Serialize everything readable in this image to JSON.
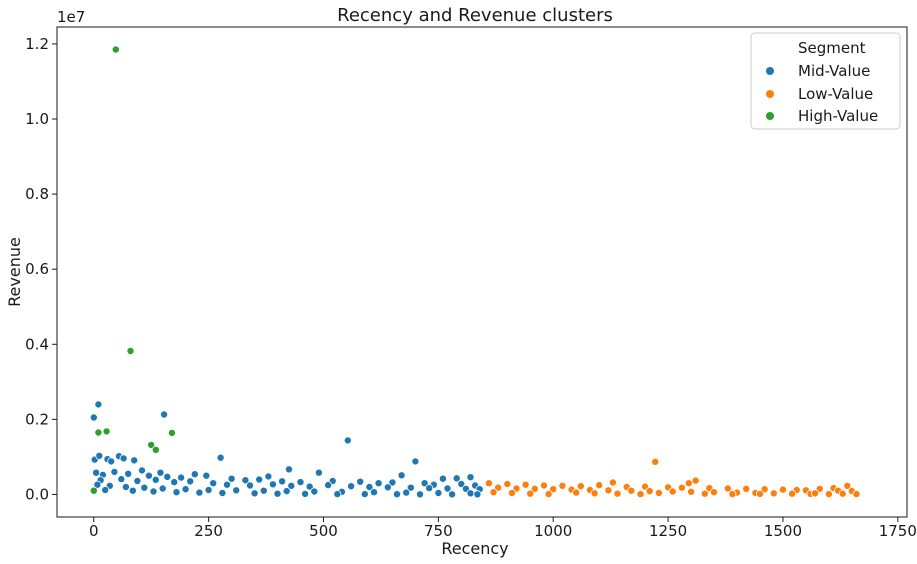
{
  "chart_data": {
    "type": "scatter",
    "title": "Recency and Revenue clusters",
    "xlabel": "Recency",
    "ylabel": "Revenue",
    "y_offset_text": "1e7",
    "xlim": [
      -80,
      1770
    ],
    "ylim": [
      -600000,
      12450000
    ],
    "x_ticks": [
      0,
      250,
      500,
      750,
      1000,
      1250,
      1500,
      1750
    ],
    "y_ticks": [
      0,
      2000000,
      4000000,
      6000000,
      8000000,
      10000000,
      12000000
    ],
    "y_tick_labels": [
      "0.0",
      "0.2",
      "0.4",
      "0.6",
      "0.8",
      "1.0",
      "1.2"
    ],
    "grid": false,
    "legend": {
      "title": "Segment",
      "placement": "top-right",
      "entries": [
        "Mid-Value",
        "Low-Value",
        "High-Value"
      ]
    },
    "series": [
      {
        "name": "Mid-Value",
        "color": "#1f77b4",
        "points": [
          [
            0,
            2050000
          ],
          [
            10,
            2400000
          ],
          [
            2,
            930000
          ],
          [
            12,
            1030000
          ],
          [
            30,
            940000
          ],
          [
            38,
            880000
          ],
          [
            55,
            1020000
          ],
          [
            65,
            960000
          ],
          [
            88,
            910000
          ],
          [
            105,
            640000
          ],
          [
            145,
            580000
          ],
          [
            153,
            2130000
          ],
          [
            220,
            540000
          ],
          [
            245,
            500000
          ],
          [
            276,
            980000
          ],
          [
            425,
            670000
          ],
          [
            490,
            580000
          ],
          [
            553,
            1440000
          ],
          [
            700,
            880000
          ],
          [
            670,
            510000
          ],
          [
            380,
            480000
          ],
          [
            760,
            420000
          ],
          [
            790,
            430000
          ],
          [
            820,
            460000
          ],
          [
            5,
            580000
          ],
          [
            20,
            520000
          ],
          [
            45,
            600000
          ],
          [
            75,
            550000
          ],
          [
            120,
            500000
          ],
          [
            160,
            470000
          ],
          [
            190,
            450000
          ],
          [
            300,
            420000
          ],
          [
            330,
            380000
          ],
          [
            360,
            400000
          ],
          [
            410,
            350000
          ],
          [
            450,
            330000
          ],
          [
            520,
            360000
          ],
          [
            580,
            340000
          ],
          [
            620,
            300000
          ],
          [
            650,
            320000
          ],
          [
            720,
            300000
          ],
          [
            740,
            260000
          ],
          [
            800,
            280000
          ],
          [
            830,
            240000
          ],
          [
            15,
            380000
          ],
          [
            60,
            410000
          ],
          [
            95,
            360000
          ],
          [
            135,
            390000
          ],
          [
            175,
            330000
          ],
          [
            210,
            350000
          ],
          [
            260,
            300000
          ],
          [
            290,
            260000
          ],
          [
            340,
            240000
          ],
          [
            390,
            270000
          ],
          [
            430,
            230000
          ],
          [
            470,
            210000
          ],
          [
            510,
            250000
          ],
          [
            560,
            220000
          ],
          [
            600,
            200000
          ],
          [
            640,
            190000
          ],
          [
            690,
            180000
          ],
          [
            730,
            170000
          ],
          [
            770,
            160000
          ],
          [
            810,
            150000
          ],
          [
            840,
            140000
          ],
          [
            8,
            260000
          ],
          [
            35,
            230000
          ],
          [
            70,
            200000
          ],
          [
            110,
            180000
          ],
          [
            150,
            160000
          ],
          [
            200,
            140000
          ],
          [
            250,
            120000
          ],
          [
            310,
            110000
          ],
          [
            370,
            100000
          ],
          [
            420,
            90000
          ],
          [
            480,
            80000
          ],
          [
            540,
            70000
          ],
          [
            610,
            60000
          ],
          [
            680,
            50000
          ],
          [
            750,
            40000
          ],
          [
            820,
            30000
          ],
          [
            25,
            120000
          ],
          [
            85,
            100000
          ],
          [
            130,
            80000
          ],
          [
            180,
            60000
          ],
          [
            230,
            50000
          ],
          [
            280,
            40000
          ],
          [
            350,
            30000
          ],
          [
            400,
            20000
          ],
          [
            460,
            15000
          ],
          [
            530,
            10000
          ],
          [
            590,
            10000
          ],
          [
            660,
            8000
          ],
          [
            710,
            5000
          ],
          [
            780,
            5000
          ],
          [
            835,
            5000
          ]
        ]
      },
      {
        "name": "Low-Value",
        "color": "#ff7f0e",
        "points": [
          [
            1222,
            870000
          ],
          [
            1310,
            370000
          ],
          [
            1295,
            300000
          ],
          [
            1640,
            230000
          ],
          [
            1610,
            170000
          ],
          [
            1580,
            150000
          ],
          [
            860,
            300000
          ],
          [
            900,
            280000
          ],
          [
            940,
            260000
          ],
          [
            980,
            240000
          ],
          [
            1020,
            230000
          ],
          [
            1060,
            220000
          ],
          [
            1100,
            250000
          ],
          [
            1130,
            320000
          ],
          [
            1160,
            200000
          ],
          [
            1200,
            210000
          ],
          [
            1250,
            190000
          ],
          [
            1280,
            180000
          ],
          [
            1340,
            170000
          ],
          [
            1380,
            160000
          ],
          [
            1420,
            150000
          ],
          [
            1460,
            140000
          ],
          [
            1500,
            130000
          ],
          [
            1530,
            120000
          ],
          [
            1550,
            110000
          ],
          [
            1620,
            100000
          ],
          [
            1650,
            90000
          ],
          [
            880,
            180000
          ],
          [
            920,
            160000
          ],
          [
            960,
            150000
          ],
          [
            1000,
            140000
          ],
          [
            1040,
            130000
          ],
          [
            1080,
            120000
          ],
          [
            1120,
            110000
          ],
          [
            1170,
            100000
          ],
          [
            1210,
            90000
          ],
          [
            1260,
            80000
          ],
          [
            1300,
            70000
          ],
          [
            1350,
            60000
          ],
          [
            1400,
            50000
          ],
          [
            1440,
            40000
          ],
          [
            1480,
            30000
          ],
          [
            1520,
            20000
          ],
          [
            1560,
            15000
          ],
          [
            1600,
            10000
          ],
          [
            870,
            60000
          ],
          [
            910,
            40000
          ],
          [
            950,
            20000
          ],
          [
            990,
            10000
          ],
          [
            1050,
            50000
          ],
          [
            1090,
            30000
          ],
          [
            1140,
            20000
          ],
          [
            1190,
            10000
          ],
          [
            1230,
            40000
          ],
          [
            1330,
            20000
          ],
          [
            1390,
            10000
          ],
          [
            1450,
            15000
          ],
          [
            1570,
            30000
          ],
          [
            1630,
            20000
          ],
          [
            1660,
            10000
          ]
        ]
      },
      {
        "name": "High-Value",
        "color": "#2ca02c",
        "points": [
          [
            48,
            11850000
          ],
          [
            80,
            3820000
          ],
          [
            10,
            1650000
          ],
          [
            28,
            1680000
          ],
          [
            125,
            1320000
          ],
          [
            135,
            1190000
          ],
          [
            170,
            1640000
          ],
          [
            0,
            100000
          ]
        ]
      }
    ]
  }
}
